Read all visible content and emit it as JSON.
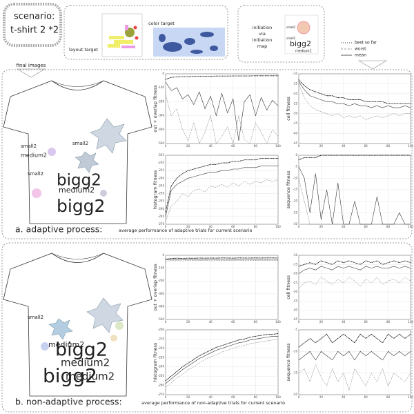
{
  "scenario": {
    "label": "scenario:",
    "name": "t-shirt 2 *2"
  },
  "targets": {
    "layout": "layout target",
    "color": "color target"
  },
  "initiation": {
    "lines": [
      "initiation",
      "via",
      "initiation",
      "map"
    ],
    "thumbnail_words": [
      "small2",
      "small2",
      "bigg2",
      "medium2"
    ]
  },
  "legend": {
    "entries": [
      "best so far",
      "worst",
      "mean"
    ],
    "colors": [
      "#000000",
      "#777777",
      "#333333"
    ]
  },
  "final_images": "final images",
  "sections": [
    {
      "label": "a. adaptive process:",
      "caption": "average performance of adaptive trials for current scenario",
      "shirt_words": [
        "small2",
        "small2",
        "medium2",
        "small2",
        "bigg2",
        "medium2",
        "bigg2"
      ]
    },
    {
      "label": "b. non-adaptive process:",
      "caption": "average performance of non-adaptive trials for current scenario",
      "shirt_words": [
        "small2",
        "medium2",
        "bigg2",
        "medium2",
        "medium2",
        "bigg2"
      ]
    }
  ],
  "chart_data": [
    {
      "type": "line",
      "ylabel": "out + overlap fitness",
      "grid": true,
      "x": [
        0,
        5,
        10,
        15,
        20,
        25,
        30,
        35,
        40,
        45,
        50,
        55,
        60,
        65,
        70,
        75,
        80,
        85,
        90,
        95,
        100
      ],
      "xlim": [
        0,
        100
      ],
      "xticks": [
        0,
        20,
        40,
        60,
        80,
        100
      ],
      "ylim": [
        -500,
        0
      ],
      "yticks": [
        -500,
        -400,
        -300,
        -200,
        -100,
        0
      ],
      "series": [
        {
          "values": [
            -40,
            -25,
            -22,
            -20,
            -20,
            -18,
            -18,
            -17,
            -17,
            -16,
            -16,
            -16,
            -15,
            -15,
            -15,
            -15,
            -14,
            -14,
            -14,
            -14,
            -14
          ]
        },
        {
          "values": [
            -150,
            -300,
            -250,
            -400,
            -480,
            -350,
            -500,
            -420,
            -300,
            -500,
            -450,
            -380,
            -500,
            -300,
            -470,
            -500,
            -350,
            -420,
            -500,
            -400,
            -450
          ]
        },
        {
          "values": [
            -60,
            -120,
            -100,
            -180,
            -150,
            -220,
            -130,
            -250,
            -160,
            -300,
            -140,
            -280,
            -180,
            -480,
            -200,
            -150,
            -300,
            -170,
            -260,
            -190,
            -230
          ]
        }
      ]
    },
    {
      "type": "line",
      "ylabel": "cell fitness",
      "grid": true,
      "x": [
        0,
        5,
        10,
        15,
        20,
        25,
        30,
        35,
        40,
        45,
        50,
        55,
        60,
        65,
        70,
        75,
        80,
        85,
        90,
        95,
        100
      ],
      "xlim": [
        0,
        100
      ],
      "xticks": [
        0,
        20,
        40,
        60,
        80,
        100
      ],
      "ylim": [
        -45,
        -10
      ],
      "yticks": [
        -45,
        -40,
        -35,
        -30,
        -25,
        -20,
        -15,
        -10
      ],
      "series": [
        {
          "values": [
            -13,
            -16,
            -18,
            -19,
            -20,
            -21,
            -21,
            -22,
            -22,
            -23,
            -23,
            -23,
            -24,
            -24,
            -24,
            -24,
            -25,
            -25,
            -25,
            -25,
            -25
          ]
        },
        {
          "values": [
            -15,
            -22,
            -26,
            -28,
            -29,
            -30,
            -31,
            -30,
            -32,
            -31,
            -32,
            -31,
            -33,
            -32,
            -31,
            -32,
            -31,
            -30,
            -31,
            -30,
            -30
          ]
        },
        {
          "values": [
            -14,
            -18,
            -21,
            -22,
            -23,
            -24,
            -24,
            -25,
            -25,
            -26,
            -25,
            -26,
            -26,
            -27,
            -26,
            -27,
            -26,
            -27,
            -27,
            -26,
            -27
          ]
        }
      ]
    },
    {
      "type": "line",
      "ylabel": "histogram fitness",
      "grid": true,
      "x": [
        0,
        5,
        10,
        15,
        20,
        25,
        30,
        35,
        40,
        45,
        50,
        55,
        60,
        65,
        70,
        75,
        80,
        85,
        90,
        95,
        100
      ],
      "xlim": [
        0,
        100
      ],
      "xticks": [
        0,
        20,
        40,
        60,
        80,
        100
      ],
      "ylim": [
        -270,
        -225
      ],
      "yticks": [
        -270,
        -265,
        -260,
        -255,
        -250,
        -245,
        -240,
        -235,
        -230,
        -225
      ],
      "series": [
        {
          "values": [
            -262,
            -245,
            -240,
            -237,
            -235,
            -234,
            -233,
            -232,
            -231,
            -231,
            -230,
            -230,
            -229,
            -229,
            -228,
            -228,
            -228,
            -227,
            -227,
            -227,
            -227
          ]
        },
        {
          "values": [
            -268,
            -258,
            -255,
            -250,
            -252,
            -248,
            -247,
            -249,
            -245,
            -246,
            -244,
            -246,
            -243,
            -245,
            -242,
            -244,
            -242,
            -243,
            -241,
            -242,
            -241
          ]
        },
        {
          "values": [
            -265,
            -248,
            -244,
            -242,
            -240,
            -239,
            -238,
            -237,
            -236,
            -236,
            -235,
            -235,
            -234,
            -234,
            -233,
            -233,
            -233,
            -232,
            -232,
            -232,
            -232
          ]
        }
      ]
    },
    {
      "type": "line",
      "ylabel": "sequence fitness",
      "grid": true,
      "x": [
        0,
        5,
        10,
        15,
        20,
        25,
        30,
        35,
        40,
        45,
        50,
        55,
        60,
        65,
        70,
        75,
        80,
        85,
        90,
        95,
        100
      ],
      "xlim": [
        0,
        100
      ],
      "xticks": [
        0,
        20,
        40,
        60,
        80,
        100
      ],
      "ylim": [
        -30,
        0
      ],
      "yticks": [
        -30,
        -25,
        -20,
        -15,
        -10,
        -5,
        0
      ],
      "series": [
        {
          "values": [
            -2,
            -1,
            -1,
            -1,
            0,
            0,
            0,
            0,
            0,
            0,
            0,
            0,
            0,
            0,
            0,
            0,
            0,
            0,
            0,
            0,
            0
          ]
        },
        {
          "values": [
            -10,
            -20,
            -30,
            -30,
            -30,
            -30,
            -30,
            -30,
            -30,
            -30,
            -30,
            -30,
            -30,
            -30,
            -30,
            -30,
            -30,
            -30,
            -30,
            -30,
            -30
          ]
        },
        {
          "values": [
            -5,
            -10,
            -25,
            -8,
            -28,
            -15,
            -30,
            -12,
            -30,
            -30,
            -20,
            -30,
            -30,
            -30,
            -18,
            -30,
            -30,
            -30,
            -25,
            -30,
            -30
          ]
        }
      ]
    },
    {
      "type": "line",
      "ylabel": "out + overlap fitness",
      "grid": true,
      "x": [
        0,
        5,
        10,
        15,
        20,
        25,
        30,
        35,
        40,
        45,
        50,
        55,
        60,
        65,
        70,
        75,
        80,
        85,
        90,
        95,
        100
      ],
      "xlim": [
        0,
        100
      ],
      "xticks": [
        0,
        20,
        40,
        60,
        80,
        100
      ],
      "ylim": [
        -500,
        0
      ],
      "yticks": [
        -500,
        -400,
        -300,
        -200,
        -100,
        0
      ],
      "series": [
        {
          "values": [
            -30,
            -25,
            -22,
            -24,
            -22,
            -23,
            -21,
            -22,
            -21,
            -22,
            -20,
            -21,
            -22,
            -20,
            -21,
            -21,
            -20,
            -21,
            -20,
            -20,
            -21
          ]
        },
        {
          "values": [
            -45,
            -42,
            -40,
            -44,
            -40,
            -42,
            -41,
            -40,
            -43,
            -41,
            -40,
            -42,
            -40,
            -41,
            -40,
            -42,
            -40,
            -41,
            -40,
            -41,
            -40
          ]
        },
        {
          "values": [
            -35,
            -32,
            -30,
            -33,
            -31,
            -30,
            -32,
            -30,
            -31,
            -30,
            -29,
            -31,
            -30,
            -29,
            -30,
            -30,
            -29,
            -30,
            -29,
            -30,
            -29
          ]
        }
      ]
    },
    {
      "type": "line",
      "ylabel": "cell fitness",
      "grid": true,
      "x": [
        0,
        5,
        10,
        15,
        20,
        25,
        30,
        35,
        40,
        45,
        50,
        55,
        60,
        65,
        70,
        75,
        80,
        85,
        90,
        95,
        100
      ],
      "xlim": [
        0,
        100
      ],
      "xticks": [
        0,
        20,
        40,
        60,
        80,
        100
      ],
      "ylim": [
        -45,
        -10
      ],
      "yticks": [
        -45,
        -40,
        -35,
        -30,
        -25,
        -20,
        -15,
        -10
      ],
      "series": [
        {
          "values": [
            -16,
            -15,
            -14,
            -15,
            -13,
            -14,
            -15,
            -13,
            -14,
            -13,
            -14,
            -15,
            -13,
            -14,
            -13,
            -15,
            -14,
            -13,
            -14,
            -13,
            -14
          ]
        },
        {
          "values": [
            -28,
            -25,
            -24,
            -26,
            -22,
            -24,
            -26,
            -23,
            -25,
            -22,
            -24,
            -27,
            -23,
            -25,
            -22,
            -26,
            -24,
            -23,
            -25,
            -22,
            -24
          ]
        },
        {
          "values": [
            -20,
            -18,
            -17,
            -18,
            -16,
            -17,
            -18,
            -16,
            -17,
            -16,
            -17,
            -18,
            -16,
            -17,
            -16,
            -17,
            -17,
            -16,
            -17,
            -16,
            -17
          ]
        }
      ]
    },
    {
      "type": "line",
      "ylabel": "histogram fitness",
      "grid": true,
      "x": [
        0,
        5,
        10,
        15,
        20,
        25,
        30,
        35,
        40,
        45,
        50,
        55,
        60,
        65,
        70,
        75,
        80,
        85,
        90,
        95,
        100
      ],
      "xlim": [
        0,
        100
      ],
      "xticks": [
        0,
        20,
        40,
        60,
        80,
        100
      ],
      "ylim": [
        -270,
        -200
      ],
      "yticks": [
        -270,
        -260,
        -250,
        -240,
        -230,
        -220,
        -210,
        -200
      ],
      "series": [
        {
          "values": [
            -255,
            -250,
            -245,
            -240,
            -236,
            -232,
            -228,
            -225,
            -222,
            -219,
            -217,
            -215,
            -213,
            -211,
            -210,
            -208,
            -207,
            -206,
            -205,
            -205,
            -204
          ]
        },
        {
          "values": [
            -262,
            -257,
            -252,
            -248,
            -243,
            -240,
            -236,
            -232,
            -229,
            -227,
            -224,
            -222,
            -220,
            -218,
            -217,
            -215,
            -214,
            -213,
            -212,
            -211,
            -210
          ]
        },
        {
          "values": [
            -258,
            -253,
            -248,
            -243,
            -239,
            -235,
            -231,
            -228,
            -225,
            -222,
            -220,
            -218,
            -216,
            -214,
            -213,
            -211,
            -210,
            -209,
            -208,
            -207,
            -207
          ]
        }
      ]
    },
    {
      "type": "line",
      "ylabel": "sequence fitness",
      "grid": true,
      "x": [
        0,
        5,
        10,
        15,
        20,
        25,
        30,
        35,
        40,
        45,
        50,
        55,
        60,
        65,
        70,
        75,
        80,
        85,
        90,
        95,
        100
      ],
      "xlim": [
        0,
        100
      ],
      "xticks": [
        0,
        20,
        40,
        60,
        80,
        100
      ],
      "ylim": [
        -20,
        -5
      ],
      "yticks": [
        -20,
        -15,
        -10,
        -5
      ],
      "series": [
        {
          "values": [
            -9,
            -8,
            -7,
            -8,
            -7,
            -6,
            -8,
            -7,
            -6,
            -7,
            -8,
            -6,
            -7,
            -6,
            -7,
            -8,
            -6,
            -7,
            -6,
            -7,
            -6
          ]
        },
        {
          "values": [
            -15,
            -14,
            -17,
            -13,
            -16,
            -18,
            -14,
            -17,
            -15,
            -19,
            -14,
            -16,
            -18,
            -15,
            -17,
            -14,
            -18,
            -15,
            -16,
            -17,
            -15
          ]
        },
        {
          "values": [
            -12,
            -11,
            -10,
            -12,
            -10,
            -11,
            -12,
            -10,
            -11,
            -10,
            -12,
            -10,
            -11,
            -10,
            -11,
            -12,
            -10,
            -11,
            -10,
            -11,
            -10
          ]
        }
      ]
    }
  ]
}
